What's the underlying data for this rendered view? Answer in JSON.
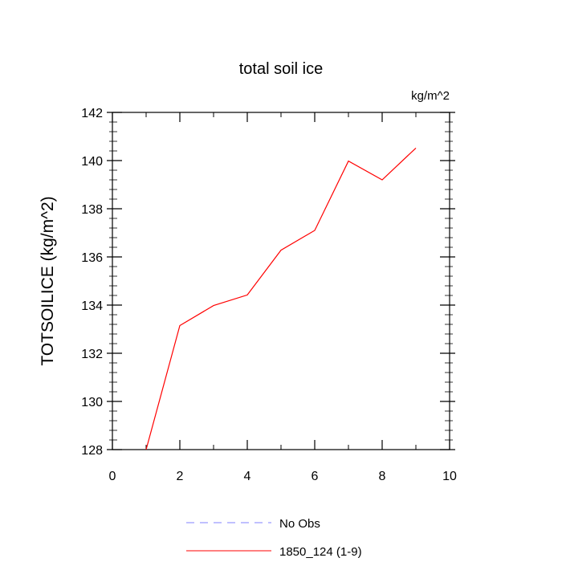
{
  "chart_data": {
    "type": "line",
    "title": "total soil ice",
    "units_label": "kg/m^2",
    "ylabel": "TOTSOILICE  (kg/m^2)",
    "xlabel": "",
    "xlim": [
      0,
      10
    ],
    "ylim": [
      128,
      142
    ],
    "x_ticks": [
      0,
      2,
      4,
      6,
      8,
      10
    ],
    "y_ticks": [
      128,
      130,
      132,
      134,
      136,
      138,
      140,
      142
    ],
    "x_tick_labels": [
      "0",
      "2",
      "4",
      "6",
      "8",
      "10"
    ],
    "y_tick_labels": [
      "128",
      "130",
      "132",
      "134",
      "136",
      "138",
      "140",
      "142"
    ],
    "grid": false,
    "legend_position": "bottom",
    "series": [
      {
        "name": "1850_124 (1-9)",
        "color": "#ff0000",
        "style": "solid",
        "x": [
          1,
          2,
          3,
          4,
          5,
          6,
          7,
          8,
          9
        ],
        "values": [
          128.0,
          133.15,
          133.98,
          134.42,
          136.28,
          137.1,
          139.98,
          139.2,
          140.52
        ]
      }
    ],
    "legend": [
      {
        "label": "No Obs",
        "color": "#8080ff",
        "style": "dashed"
      },
      {
        "label": "1850_124 (1-9)",
        "color": "#ff0000",
        "style": "solid"
      }
    ]
  }
}
